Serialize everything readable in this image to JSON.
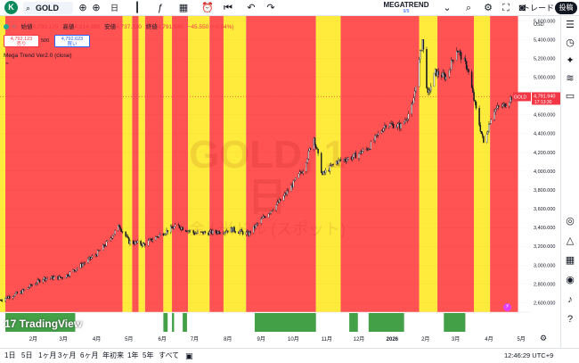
{
  "toolbar": {
    "logo_letter": "K",
    "symbol": "GOLD",
    "timeframe": "日",
    "indicator_title": "MEGATREND",
    "indicator_sub": "9/9",
    "trade_label": "トレード",
    "post_label": "投稿"
  },
  "legend": {
    "open_label": "始値",
    "open": "4,792.170",
    "high_label": "高値",
    "high": "4,814.390",
    "low_label": "安値",
    "low": "4,737.330",
    "close_label": "終値",
    "close": "4,791.940",
    "change": "−45.550 (−0.94%)",
    "sell_price": "4,792.123",
    "sell_label": "売り",
    "spread": "500",
    "buy_price": "4,792.623",
    "buy_label": "買い",
    "study": "Mega Trend Ver2.0 (close)"
  },
  "watermark": {
    "title": "GOLD, 1日",
    "subtitle": "金 / 米ドル (スポット)"
  },
  "price_axis": {
    "currency": "USD",
    "ticks": [
      "5,600.000",
      "5,400.000",
      "5,200.000",
      "5,000.000",
      "4,800.000",
      "4,600.000",
      "4,400.000",
      "4,200.000",
      "4,000.000",
      "3,800.000",
      "3,600.000",
      "3,400.000",
      "3,200.000",
      "3,000.000",
      "2,800.000",
      "2,600.000"
    ],
    "last_price_symbol": "GOLD",
    "last_price": "4,791.940",
    "countdown": "17:13:30"
  },
  "time_axis": {
    "labels": [
      "2月",
      "3月",
      "4月",
      "5月",
      "6月",
      "7月",
      "8月",
      "9月",
      "10月",
      "11月",
      "12月",
      "2026",
      "2月",
      "3月",
      "4月",
      "5月"
    ]
  },
  "chart_data": {
    "type": "candlestick",
    "symbol": "GOLD",
    "timeframe": "1D",
    "ylim": [
      2500,
      5650
    ],
    "x_range": [
      "2025-01-01",
      "2026-05-10"
    ],
    "trend_series": [
      {
        "x": "2025-01-01",
        "y": 2630
      },
      {
        "x": "2025-01-20",
        "y": 2710
      },
      {
        "x": "2025-02-10",
        "y": 2860
      },
      {
        "x": "2025-03-01",
        "y": 2870
      },
      {
        "x": "2025-03-20",
        "y": 3020
      },
      {
        "x": "2025-04-01",
        "y": 3120
      },
      {
        "x": "2025-04-10",
        "y": 3230
      },
      {
        "x": "2025-04-22",
        "y": 3420
      },
      {
        "x": "2025-05-01",
        "y": 3250
      },
      {
        "x": "2025-05-15",
        "y": 3220
      },
      {
        "x": "2025-06-01",
        "y": 3340
      },
      {
        "x": "2025-06-15",
        "y": 3420
      },
      {
        "x": "2025-07-01",
        "y": 3340
      },
      {
        "x": "2025-07-20",
        "y": 3350
      },
      {
        "x": "2025-08-05",
        "y": 3380
      },
      {
        "x": "2025-08-20",
        "y": 3330
      },
      {
        "x": "2025-09-01",
        "y": 3480
      },
      {
        "x": "2025-09-20",
        "y": 3700
      },
      {
        "x": "2025-10-01",
        "y": 3870
      },
      {
        "x": "2025-10-10",
        "y": 4020
      },
      {
        "x": "2025-10-20",
        "y": 4360
      },
      {
        "x": "2025-10-28",
        "y": 3960
      },
      {
        "x": "2025-11-10",
        "y": 4100
      },
      {
        "x": "2025-11-25",
        "y": 4150
      },
      {
        "x": "2025-12-10",
        "y": 4250
      },
      {
        "x": "2025-12-26",
        "y": 4500
      },
      {
        "x": "2026-01-10",
        "y": 4480
      },
      {
        "x": "2026-01-20",
        "y": 4700
      },
      {
        "x": "2026-01-29",
        "y": 5400
      },
      {
        "x": "2026-02-03",
        "y": 4800
      },
      {
        "x": "2026-02-10",
        "y": 5050
      },
      {
        "x": "2026-02-20",
        "y": 5000
      },
      {
        "x": "2026-03-02",
        "y": 5300
      },
      {
        "x": "2026-03-12",
        "y": 5100
      },
      {
        "x": "2026-03-20",
        "y": 4650
      },
      {
        "x": "2026-03-27",
        "y": 4300
      },
      {
        "x": "2026-04-05",
        "y": 4650
      },
      {
        "x": "2026-04-15",
        "y": 4700
      },
      {
        "x": "2026-04-22",
        "y": 4790
      }
    ],
    "trend_bands": [
      {
        "from": "2025-01-01",
        "to": "2025-01-06",
        "color": "#ffeb3b"
      },
      {
        "from": "2025-01-06",
        "to": "2025-04-25",
        "color": "#ff5252"
      },
      {
        "from": "2025-04-25",
        "to": "2025-05-04",
        "color": "#ffeb3b"
      },
      {
        "from": "2025-05-04",
        "to": "2025-05-10",
        "color": "#ff5252"
      },
      {
        "from": "2025-05-10",
        "to": "2025-05-16",
        "color": "#ffeb3b"
      },
      {
        "from": "2025-05-16",
        "to": "2025-06-02",
        "color": "#ff5252"
      },
      {
        "from": "2025-06-02",
        "to": "2025-06-10",
        "color": "#ffeb3b"
      },
      {
        "from": "2025-06-10",
        "to": "2025-06-25",
        "color": "#ff5252"
      },
      {
        "from": "2025-06-25",
        "to": "2025-07-15",
        "color": "#ffeb3b"
      },
      {
        "from": "2025-07-15",
        "to": "2025-07-28",
        "color": "#ff5252"
      },
      {
        "from": "2025-07-28",
        "to": "2025-08-18",
        "color": "#ffeb3b"
      },
      {
        "from": "2025-08-18",
        "to": "2025-10-22",
        "color": "#ff5252"
      },
      {
        "from": "2025-10-22",
        "to": "2025-11-14",
        "color": "#ffeb3b"
      },
      {
        "from": "2025-11-14",
        "to": "2026-01-26",
        "color": "#ff5252"
      },
      {
        "from": "2026-01-26",
        "to": "2026-02-12",
        "color": "#ffeb3b"
      },
      {
        "from": "2026-02-12",
        "to": "2026-03-18",
        "color": "#ff5252"
      },
      {
        "from": "2026-03-18",
        "to": "2026-04-02",
        "color": "#ffeb3b"
      },
      {
        "from": "2026-04-02",
        "to": "2026-04-28",
        "color": "#ff5252"
      }
    ],
    "signal_strip": [
      {
        "from": "2025-01-06",
        "to": "2025-03-12"
      },
      {
        "from": "2025-06-02",
        "to": "2025-06-06"
      },
      {
        "from": "2025-06-10",
        "to": "2025-06-12"
      },
      {
        "from": "2025-06-20",
        "to": "2025-06-24"
      },
      {
        "from": "2025-08-26",
        "to": "2025-10-22"
      },
      {
        "from": "2025-11-22",
        "to": "2025-11-30"
      },
      {
        "from": "2025-12-10",
        "to": "2026-01-12"
      },
      {
        "from": "2026-02-18",
        "to": "2026-03-10"
      }
    ]
  },
  "range_bar": {
    "ranges": [
      "1日",
      "5日",
      "1ヶ月",
      "3ヶ月",
      "6ヶ月",
      "年初来",
      "1年",
      "5年",
      "すべて"
    ],
    "clock": "12:46:29 UTC+9"
  },
  "colors": {
    "band_red": "#ff5252",
    "band_yellow": "#ffeb3b",
    "signal_green": "#43a047",
    "candle_up": "#131722",
    "last_price_bg": "#f23645"
  }
}
